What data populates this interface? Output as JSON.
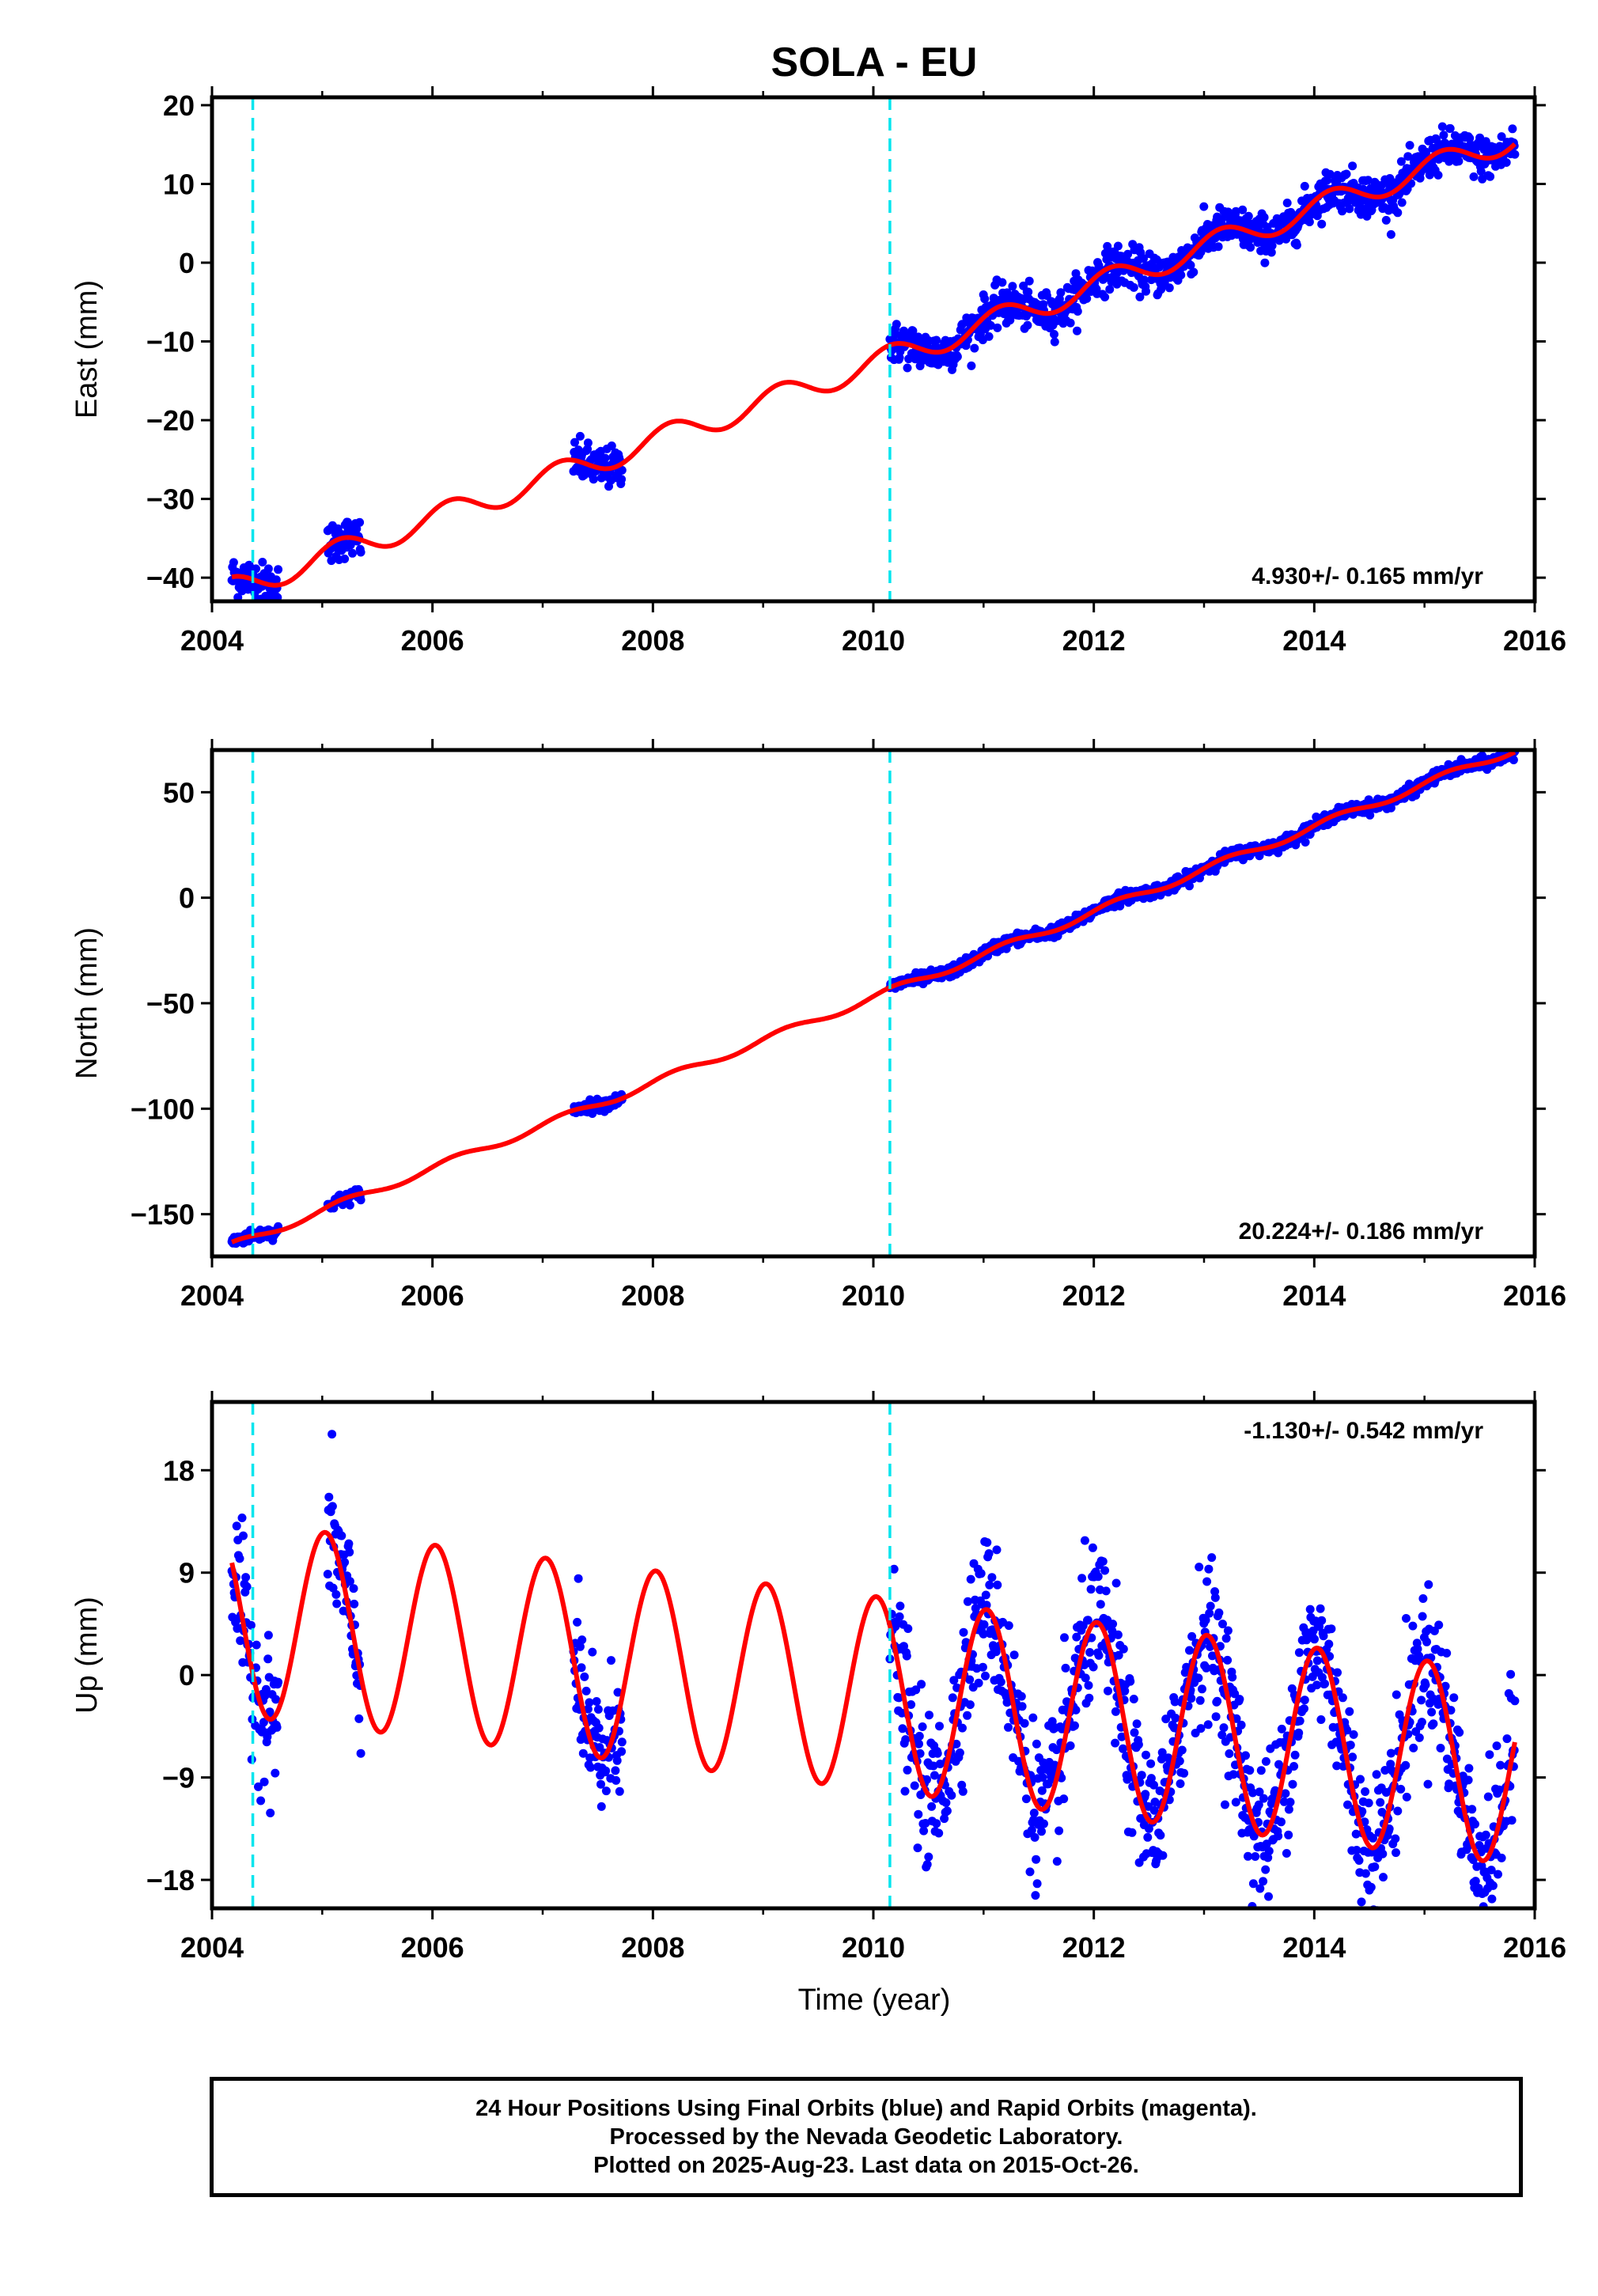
{
  "title": "SOLA - EU",
  "colors": {
    "points": "#0000ff",
    "fit": "#ff0000",
    "breaks": "#00e5ee",
    "frame": "#000000"
  },
  "xaxis": {
    "label": "Time (year)",
    "range": [
      2004.0,
      2016.0
    ],
    "ticks": [
      2004,
      2006,
      2008,
      2010,
      2012,
      2014,
      2016
    ],
    "tick_labels": [
      "2004",
      "2006",
      "2008",
      "2010",
      "2012",
      "2014",
      "2016"
    ]
  },
  "caption": {
    "line1": "24 Hour Positions Using Final Orbits (blue) and Rapid Orbits (magenta).",
    "line2": "Processed by the Nevada Geodetic Laboratory.",
    "line3": "Plotted on 2025-Aug-23. Last data on 2015-Oct-26."
  },
  "chart_data": [
    {
      "type": "scatter",
      "component": "east",
      "ylabel": "East (mm)",
      "ylim": [
        -43,
        21
      ],
      "yticks": [
        20,
        10,
        0,
        -10,
        -20,
        -30,
        -40
      ],
      "ytick_labels": [
        "20",
        "10",
        "0",
        "−10",
        "−20",
        "−30",
        "−40"
      ],
      "velocity_label": "4.930+/- 0.165 mm/yr",
      "velocity_position": "bottom-right",
      "breaks": [
        2004.37,
        2010.15
      ],
      "data_segments": [
        [
          2004.18,
          2004.6
        ],
        [
          2005.05,
          2005.35
        ],
        [
          2007.28,
          2007.72
        ],
        [
          2010.15,
          2015.82
        ]
      ],
      "fit": {
        "t0": 2004.18,
        "offset": -41.5,
        "rate": 4.93,
        "annual_amplitude": 1.6,
        "annual_phase": 0.6,
        "jumps": [
          {
            "t": 2004.37,
            "value": 0
          },
          {
            "t": 2010.15,
            "value": 0
          }
        ]
      },
      "point_scatter": 1.3,
      "grid": false
    },
    {
      "type": "scatter",
      "component": "north",
      "ylabel": "North (mm)",
      "ylim": [
        -170,
        70
      ],
      "yticks": [
        50,
        0,
        -50,
        -100,
        -150
      ],
      "ytick_labels": [
        "50",
        "0",
        "−50",
        "−100",
        "−150"
      ],
      "velocity_label": "20.224+/- 0.186 mm/yr",
      "velocity_position": "bottom-right",
      "breaks": [
        2004.37,
        2010.15
      ],
      "data_segments": [
        [
          2004.18,
          2004.6
        ],
        [
          2005.05,
          2005.35
        ],
        [
          2007.28,
          2007.72
        ],
        [
          2010.15,
          2015.82
        ]
      ],
      "fit": {
        "t0": 2004.18,
        "offset": -165.0,
        "rate": 20.224,
        "annual_amplitude": 1.8,
        "annual_phase": 0.3,
        "jumps": [
          {
            "t": 2004.37,
            "value": 0
          },
          {
            "t": 2010.15,
            "value": 0
          }
        ]
      },
      "point_scatter": 1.4,
      "grid": false
    },
    {
      "type": "scatter",
      "component": "up",
      "ylabel": "Up (mm)",
      "ylim": [
        -20.5,
        24
      ],
      "yticks": [
        18,
        9,
        0,
        -9,
        -18
      ],
      "ytick_labels": [
        "18",
        "9",
        "0",
        "−9",
        "−18"
      ],
      "velocity_label": "-1.130+/- 0.542 mm/yr",
      "velocity_position": "top-right",
      "breaks": [
        2004.37,
        2010.15
      ],
      "data_segments": [
        [
          2004.18,
          2004.6
        ],
        [
          2005.05,
          2005.35
        ],
        [
          2007.28,
          2007.72
        ],
        [
          2010.15,
          2015.82
        ]
      ],
      "fit": {
        "t0": 2004.18,
        "offset": 5.0,
        "rate": -1.13,
        "annual_amplitude": 8.5,
        "annual_phase": 1.4,
        "jumps": [
          {
            "t": 2004.37,
            "value": 0
          },
          {
            "t": 2010.15,
            "value": 0
          }
        ]
      },
      "point_scatter": 3.2,
      "grid": false
    }
  ]
}
